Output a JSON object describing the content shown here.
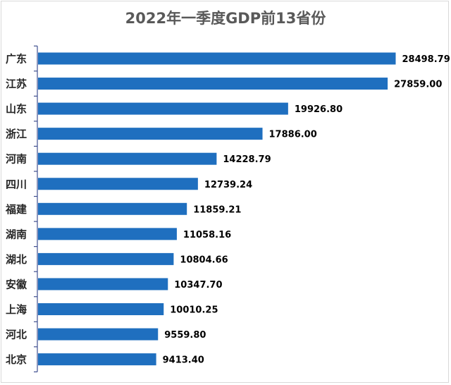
{
  "chart_data": {
    "type": "bar",
    "orientation": "horizontal",
    "title": "2022年一季度GDP前13省份",
    "categories": [
      "广东",
      "江苏",
      "山东",
      "浙江",
      "河南",
      "四川",
      "福建",
      "湖南",
      "湖北",
      "安徽",
      "上海",
      "河北",
      "北京"
    ],
    "values": [
      28498.79,
      27859.0,
      19926.8,
      17886.0,
      14228.79,
      12739.24,
      11859.21,
      11058.16,
      10804.66,
      10347.7,
      10010.25,
      9559.8,
      9413.4
    ],
    "value_labels": [
      "28498.79",
      "27859.00",
      "19926.80",
      "17886.00",
      "14228.79",
      "12739.24",
      "11859.21",
      "11058.16",
      "10804.66",
      "10347.70",
      "10010.25",
      "9559.80",
      "9413.40"
    ],
    "xlim": [
      0,
      29200
    ],
    "grid": false,
    "legend": "none",
    "bar_color": "#1f6fbf",
    "axis_color": "#3f4f8f"
  }
}
